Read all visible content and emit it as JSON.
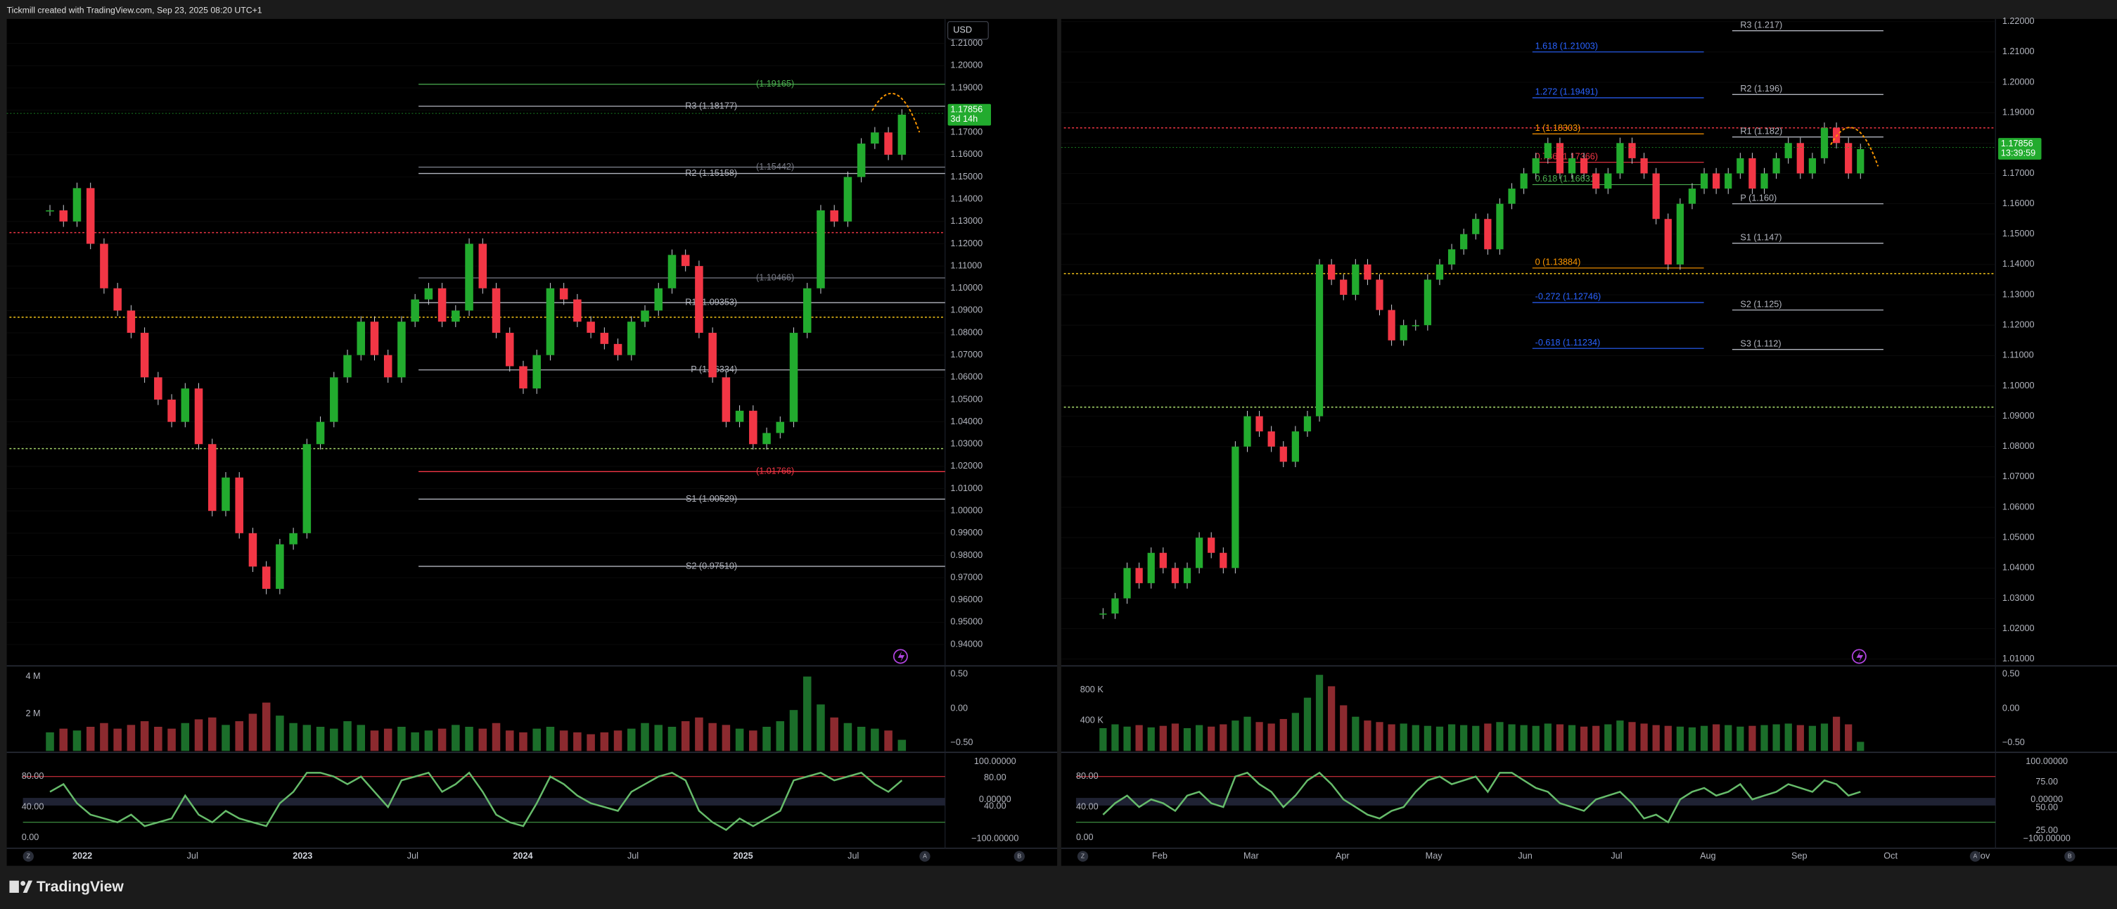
{
  "header": "Tickmill created with TradingView.com, Sep 23, 2025 08:20 UTC+1",
  "footer": "TradingView",
  "panels": [
    {
      "currency": "USD",
      "last_price": "1.17856",
      "countdown": "3d 14h",
      "last_value": 1.17856,
      "ylim": [
        0.931,
        1.221
      ],
      "price_ticks": [
        "1.21000",
        "1.20000",
        "1.19000",
        "1.18000",
        "1.17000",
        "1.16000",
        "1.15000",
        "1.14000",
        "1.13000",
        "1.12000",
        "1.11000",
        "1.10000",
        "1.09000",
        "1.08000",
        "1.07000",
        "1.06000",
        "1.05000",
        "1.04000",
        "1.03000",
        "1.02000",
        "1.01000",
        "1.00000",
        "0.99000",
        "0.98000",
        "0.97000",
        "0.96000",
        "0.95000",
        "0.94000"
      ],
      "levels": [
        {
          "label": "(1.19165)",
          "value": 1.19165,
          "color": "#4caf50"
        },
        {
          "label": "R3 (1.18177)",
          "value": 1.18177,
          "color": "#b2b5be"
        },
        {
          "label": "(1.15442)",
          "value": 1.15442,
          "color": "#787b86"
        },
        {
          "label": "R2 (1.15158)",
          "value": 1.15158,
          "color": "#b2b5be"
        },
        {
          "label": "(1.10466)",
          "value": 1.10466,
          "color": "#787b86"
        },
        {
          "label": "R1 (1.09353)",
          "value": 1.09353,
          "color": "#b2b5be"
        },
        {
          "label": "P (1.06334)",
          "value": 1.06334,
          "color": "#b2b5be"
        },
        {
          "label": "(1.01766)",
          "value": 1.01766,
          "color": "#f23645"
        },
        {
          "label": "S1 (1.00529)",
          "value": 1.00529,
          "color": "#b2b5be"
        },
        {
          "label": "S2 (0.97510)",
          "value": 0.9751,
          "color": "#b2b5be"
        }
      ],
      "fibs": [],
      "dotted": [
        {
          "value": 1.125,
          "color": "#f23645"
        },
        {
          "value": 1.087,
          "color": "#f5c518"
        },
        {
          "value": 1.028,
          "color": "#a5d66a"
        }
      ],
      "closes": [
        1.135,
        1.13,
        1.145,
        1.12,
        1.1,
        1.09,
        1.08,
        1.06,
        1.05,
        1.04,
        1.055,
        1.03,
        1.0,
        1.015,
        0.99,
        0.975,
        0.965,
        0.985,
        0.99,
        1.03,
        1.04,
        1.06,
        1.07,
        1.085,
        1.07,
        1.06,
        1.085,
        1.095,
        1.1,
        1.085,
        1.09,
        1.12,
        1.1,
        1.08,
        1.065,
        1.055,
        1.07,
        1.1,
        1.095,
        1.085,
        1.08,
        1.075,
        1.07,
        1.085,
        1.09,
        1.1,
        1.115,
        1.11,
        1.08,
        1.06,
        1.04,
        1.045,
        1.03,
        1.035,
        1.04,
        1.08,
        1.1,
        1.135,
        1.13,
        1.15,
        1.165,
        1.17,
        1.16,
        1.178
      ],
      "volumes": [
        1.0,
        1.2,
        1.1,
        1.3,
        1.5,
        1.2,
        1.4,
        1.6,
        1.3,
        1.2,
        1.5,
        1.7,
        1.8,
        1.4,
        1.6,
        2.0,
        2.6,
        1.9,
        1.5,
        1.4,
        1.3,
        1.2,
        1.6,
        1.4,
        1.1,
        1.2,
        1.3,
        1.0,
        1.1,
        1.2,
        1.4,
        1.3,
        1.2,
        1.5,
        1.1,
        1.0,
        1.2,
        1.3,
        1.1,
        1.0,
        0.9,
        1.0,
        1.1,
        1.2,
        1.5,
        1.4,
        1.3,
        1.6,
        1.8,
        1.5,
        1.4,
        1.2,
        1.1,
        1.3,
        1.6,
        2.2,
        4.0,
        2.5,
        1.8,
        1.5,
        1.3,
        1.2,
        1.1,
        0.6
      ],
      "volume_ylim": [
        0,
        4.5
      ],
      "volume_ticks": [
        {
          "value": 4,
          "label": "4 M"
        },
        {
          "value": 2,
          "label": "2 M"
        }
      ],
      "volume_right_labels": [
        "0.50",
        "0.00",
        "−0.50"
      ],
      "osc": [
        60,
        70,
        45,
        30,
        25,
        20,
        30,
        15,
        20,
        25,
        55,
        30,
        20,
        35,
        25,
        20,
        15,
        45,
        60,
        85,
        85,
        80,
        70,
        80,
        60,
        40,
        75,
        80,
        85,
        60,
        70,
        85,
        60,
        30,
        20,
        15,
        45,
        80,
        70,
        55,
        45,
        40,
        35,
        60,
        70,
        80,
        85,
        75,
        35,
        20,
        10,
        25,
        15,
        25,
        35,
        75,
        80,
        85,
        75,
        80,
        85,
        70,
        60,
        75
      ],
      "osc_ylim": [
        -14,
        110
      ],
      "osc_color": "#66bb6a",
      "osc_ticks": [
        {
          "value": 80,
          "label": "80.00"
        },
        {
          "value": 40,
          "label": "40.00"
        },
        {
          "value": 0,
          "label": "0.00"
        }
      ],
      "osc_right_labels": [
        "100.00000",
        "80.00",
        "0.00000",
        "40.00",
        "−100.00000"
      ],
      "time_labels": [
        "2022",
        "Jul",
        "2023",
        "Jul",
        "2024",
        "Jul",
        "2025",
        "Jul"
      ],
      "corner_buttons": [
        "Z",
        "A",
        "B"
      ]
    },
    {
      "last_price": "1.17856",
      "countdown": "13:39:59",
      "last_value": 1.17856,
      "ylim": [
        1.0082,
        1.2209
      ],
      "price_ticks": [
        "1.22000",
        "1.21000",
        "1.20000",
        "1.19000",
        "1.18000",
        "1.17000",
        "1.16000",
        "1.15000",
        "1.14000",
        "1.13000",
        "1.12000",
        "1.11000",
        "1.10000",
        "1.09000",
        "1.08000",
        "1.07000",
        "1.06000",
        "1.05000",
        "1.04000",
        "1.03000",
        "1.02000",
        "1.01000"
      ],
      "levels": [
        {
          "label": "R3 (1.217)",
          "value": 1.217,
          "color": "#b2b5be"
        },
        {
          "label": "R2 (1.196)",
          "value": 1.196,
          "color": "#b2b5be"
        },
        {
          "label": "R1 (1.182)",
          "value": 1.182,
          "color": "#b2b5be"
        },
        {
          "label": "P (1.160)",
          "value": 1.16,
          "color": "#b2b5be"
        },
        {
          "label": "S1 (1.147)",
          "value": 1.147,
          "color": "#b2b5be"
        },
        {
          "label": "S2 (1.125)",
          "value": 1.125,
          "color": "#b2b5be"
        },
        {
          "label": "S3 (1.112)",
          "value": 1.112,
          "color": "#b2b5be"
        }
      ],
      "fibs": [
        {
          "label": "1.618 (1.21003)",
          "value": 1.21003,
          "color": "#2962ff"
        },
        {
          "label": "1.272 (1.19491)",
          "value": 1.19491,
          "color": "#2962ff"
        },
        {
          "label": "1 (1.18303)",
          "value": 1.18303,
          "color": "#ff9800"
        },
        {
          "label": "0.786 (1.17366)",
          "value": 1.17366,
          "color": "#f23645"
        },
        {
          "label": "0.618 (1.16631)",
          "value": 1.16631,
          "color": "#4caf50"
        },
        {
          "label": "0 (1.13884)",
          "value": 1.13884,
          "color": "#ff9800"
        },
        {
          "label": "-0.272 (1.12746)",
          "value": 1.12746,
          "color": "#2962ff"
        },
        {
          "label": "-0.618 (1.11234)",
          "value": 1.11234,
          "color": "#2962ff"
        }
      ],
      "dotted": [
        {
          "value": 1.185,
          "color": "#f23645"
        },
        {
          "value": 1.137,
          "color": "#f5c518"
        },
        {
          "value": 1.093,
          "color": "#a5d66a"
        }
      ],
      "closes": [
        1.025,
        1.03,
        1.04,
        1.035,
        1.045,
        1.04,
        1.035,
        1.04,
        1.05,
        1.045,
        1.04,
        1.08,
        1.09,
        1.085,
        1.08,
        1.075,
        1.085,
        1.09,
        1.14,
        1.135,
        1.13,
        1.14,
        1.135,
        1.125,
        1.115,
        1.12,
        1.12,
        1.135,
        1.14,
        1.145,
        1.15,
        1.155,
        1.145,
        1.16,
        1.165,
        1.17,
        1.175,
        1.18,
        1.17,
        1.175,
        1.17,
        1.165,
        1.17,
        1.18,
        1.175,
        1.17,
        1.155,
        1.14,
        1.16,
        1.165,
        1.17,
        1.165,
        1.17,
        1.175,
        1.165,
        1.17,
        1.175,
        1.18,
        1.17,
        1.175,
        1.185,
        1.18,
        1.17,
        1.178
      ],
      "volumes": [
        300,
        350,
        320,
        340,
        310,
        330,
        360,
        300,
        340,
        320,
        350,
        400,
        450,
        380,
        360,
        420,
        500,
        700,
        1000,
        850,
        600,
        450,
        400,
        380,
        350,
        360,
        340,
        330,
        320,
        350,
        340,
        330,
        360,
        380,
        350,
        340,
        330,
        360,
        350,
        340,
        320,
        330,
        350,
        400,
        380,
        360,
        340,
        330,
        320,
        310,
        330,
        350,
        340,
        320,
        330,
        340,
        350,
        360,
        340,
        330,
        360,
        450,
        350,
        120
      ],
      "volume_ylim": [
        0,
        1100
      ],
      "volume_ticks": [
        {
          "value": 800,
          "label": "800 K"
        },
        {
          "value": 400,
          "label": "400 K"
        }
      ],
      "volume_right_labels": [
        "0.50",
        "0.00",
        "−0.50"
      ],
      "osc": [
        30,
        45,
        55,
        40,
        50,
        45,
        35,
        55,
        60,
        45,
        40,
        80,
        85,
        70,
        60,
        40,
        55,
        75,
        85,
        70,
        50,
        40,
        30,
        25,
        35,
        40,
        60,
        75,
        80,
        70,
        75,
        80,
        60,
        85,
        85,
        75,
        65,
        60,
        45,
        40,
        35,
        50,
        55,
        60,
        45,
        25,
        30,
        20,
        50,
        60,
        65,
        55,
        60,
        70,
        50,
        55,
        60,
        70,
        65,
        60,
        75,
        70,
        55,
        60
      ],
      "osc_ylim": [
        -14,
        110
      ],
      "osc_color": "#66bb6a",
      "osc_ticks": [
        {
          "value": 80,
          "label": "80.00"
        },
        {
          "value": 40,
          "label": "40.00"
        },
        {
          "value": 0,
          "label": "0.00"
        }
      ],
      "osc_right_labels": [
        "100.00000",
        "75.00",
        "0.00000",
        "50.00",
        "25.00",
        "−100.00000"
      ],
      "time_labels": [
        "Feb",
        "Mar",
        "Apr",
        "May",
        "Jun",
        "Jul",
        "Aug",
        "Sep",
        "Oct",
        "Nov"
      ],
      "corner_buttons": [
        "Z",
        "A",
        "B"
      ]
    }
  ]
}
